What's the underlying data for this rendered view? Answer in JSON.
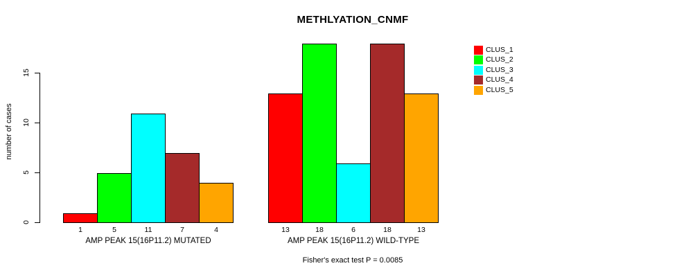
{
  "chart_data": {
    "type": "bar",
    "title": "METHLYATION_CNMF",
    "ylabel": "number of cases",
    "xlabel": "",
    "yticks": [
      0,
      5,
      10,
      15
    ],
    "ylim": [
      0,
      18
    ],
    "grid": false,
    "legend_position": "right",
    "series_names": [
      "CLUS_1",
      "CLUS_2",
      "CLUS_3",
      "CLUS_4",
      "CLUS_5"
    ],
    "colors": [
      "#FF0000",
      "#00FF00",
      "#00FFFF",
      "#A52A2A",
      "#FFA500"
    ],
    "groups": [
      {
        "label": "AMP PEAK 15(16P11.2) MUTATED",
        "values": [
          1,
          5,
          11,
          7,
          4
        ]
      },
      {
        "label": "AMP PEAK 15(16P11.2) WILD-TYPE",
        "values": [
          13,
          18,
          6,
          18,
          13
        ]
      }
    ],
    "footnote": "Fisher's exact test P = 0.0085",
    "text_color": "#000000",
    "background_color": "#FFFFFF"
  }
}
